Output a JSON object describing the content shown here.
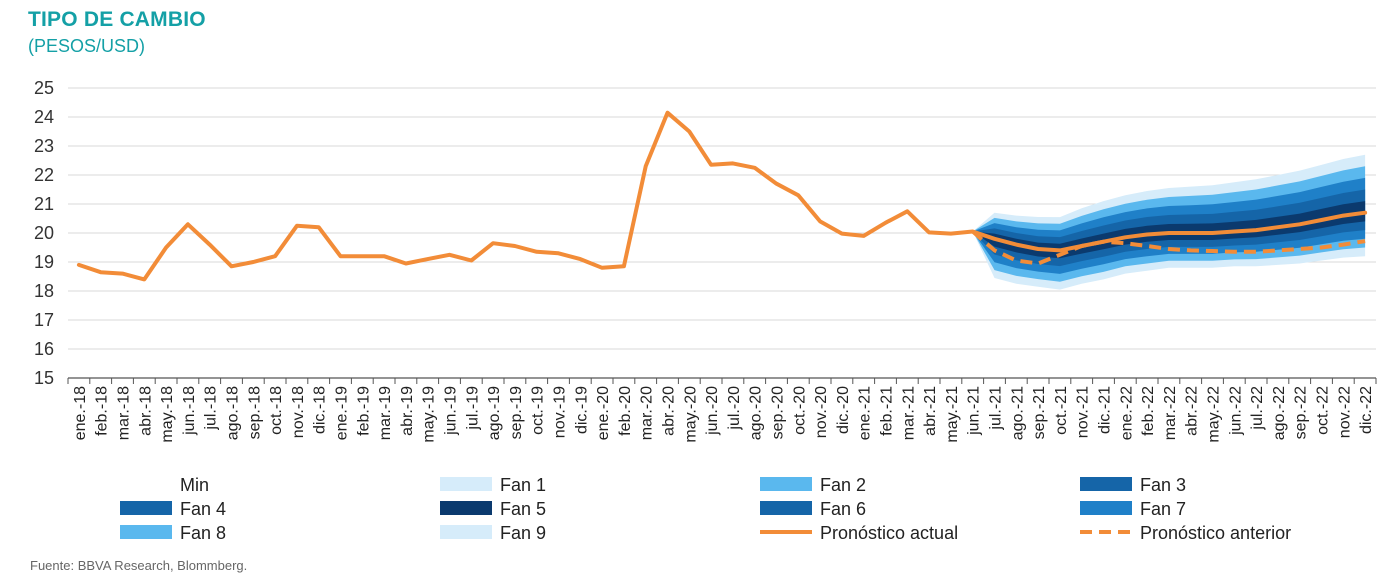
{
  "chart_data": {
    "type": "line",
    "title": "TIPO DE CAMBIO",
    "subtitle": "(PESOS/USD)",
    "ylim": [
      15,
      25
    ],
    "yticks": [
      15,
      16,
      17,
      18,
      19,
      20,
      21,
      22,
      23,
      24,
      25
    ],
    "grid": true,
    "legend_position": "bottom",
    "categories": [
      "ene.-18",
      "feb.-18",
      "mar.-18",
      "abr.-18",
      "may.-18",
      "jun.-18",
      "jul.-18",
      "ago.-18",
      "sep.-18",
      "oct.-18",
      "nov.-18",
      "dic.-18",
      "ene.-19",
      "feb.-19",
      "mar.-19",
      "abr.-19",
      "may.-19",
      "jun.-19",
      "jul.-19",
      "ago.-19",
      "sep.-19",
      "oct.-19",
      "nov.-19",
      "dic.-19",
      "ene.-20",
      "feb.-20",
      "mar.-20",
      "abr.-20",
      "may.-20",
      "jun.-20",
      "jul.-20",
      "ago.-20",
      "sep.-20",
      "oct.-20",
      "nov.-20",
      "dic.-20",
      "ene.-21",
      "feb.-21",
      "mar.-21",
      "abr.-21",
      "may.-21",
      "jun.-21",
      "jul.-21",
      "ago.-21",
      "sep.-21",
      "oct.-21",
      "nov.-21",
      "dic.-21",
      "ene.-22",
      "feb.-22",
      "mar.-22",
      "abr.-22",
      "may.-22",
      "jun.-22",
      "jul.-22",
      "ago.-22",
      "sep.-22",
      "oct.-22",
      "nov.-22",
      "dic.-22"
    ],
    "series": [
      {
        "name": "Pronóstico actual",
        "color": "#f28c38",
        "style": "solid",
        "values": [
          18.9,
          18.65,
          18.6,
          18.4,
          19.5,
          20.3,
          19.6,
          18.85,
          19.0,
          19.2,
          20.25,
          20.2,
          19.2,
          19.2,
          19.2,
          18.95,
          19.1,
          19.25,
          19.05,
          19.65,
          19.55,
          19.35,
          19.3,
          19.1,
          18.8,
          18.85,
          22.3,
          24.15,
          23.5,
          22.35,
          22.4,
          22.25,
          21.7,
          21.3,
          20.4,
          19.98,
          19.9,
          20.35,
          20.75,
          20.02,
          19.98,
          20.05,
          19.8,
          19.6,
          19.45,
          19.4,
          19.55,
          19.7,
          19.85,
          19.95,
          20.0,
          20.0,
          20.0,
          20.05,
          20.1,
          20.2,
          20.3,
          20.45,
          20.6,
          20.7
        ]
      },
      {
        "name": "Pronóstico anterior",
        "color": "#f28c38",
        "style": "dashed",
        "values": [
          null,
          null,
          null,
          null,
          null,
          null,
          null,
          null,
          null,
          null,
          null,
          null,
          null,
          null,
          null,
          null,
          null,
          null,
          null,
          null,
          null,
          null,
          null,
          null,
          null,
          null,
          null,
          null,
          null,
          null,
          null,
          null,
          null,
          null,
          null,
          null,
          null,
          null,
          null,
          null,
          null,
          20.05,
          19.4,
          19.05,
          18.95,
          19.25,
          19.55,
          19.7,
          19.65,
          19.55,
          19.45,
          19.4,
          19.38,
          19.35,
          19.35,
          19.4,
          19.45,
          19.5,
          19.6,
          19.72
        ]
      }
    ],
    "fan": {
      "start_category": "jun.-21",
      "center_values": [
        20.05,
        19.8,
        19.6,
        19.45,
        19.4,
        19.55,
        19.7,
        19.85,
        19.95,
        20.0,
        20.0,
        20.0,
        20.05,
        20.1,
        20.2,
        20.3,
        20.45,
        20.6,
        20.7
      ],
      "upper_offsets": [
        0,
        0.9,
        1.0,
        1.1,
        1.15,
        1.3,
        1.4,
        1.45,
        1.5,
        1.55,
        1.6,
        1.65,
        1.7,
        1.75,
        1.8,
        1.85,
        1.9,
        1.95,
        2.0
      ],
      "lower_offsets": [
        0,
        1.35,
        1.35,
        1.3,
        1.35,
        1.3,
        1.3,
        1.25,
        1.25,
        1.2,
        1.2,
        1.2,
        1.2,
        1.25,
        1.3,
        1.35,
        1.4,
        1.45,
        1.5
      ]
    },
    "legend": [
      {
        "label": "Min",
        "kind": "none",
        "color": ""
      },
      {
        "label": "Fan 1",
        "kind": "rect",
        "color": "#d6ecfa"
      },
      {
        "label": "Fan 2",
        "kind": "rect",
        "color": "#5ab8ee"
      },
      {
        "label": "Fan 3",
        "kind": "rect",
        "color": "#1565a8"
      },
      {
        "label": "Fan 4",
        "kind": "rect",
        "color": "#1565a8"
      },
      {
        "label": "Fan 5",
        "kind": "rect",
        "color": "#0b3a6e"
      },
      {
        "label": "Fan 6",
        "kind": "rect",
        "color": "#1565a8"
      },
      {
        "label": "Fan 7",
        "kind": "rect",
        "color": "#1f80c8"
      },
      {
        "label": "Fan 8",
        "kind": "rect",
        "color": "#5ab8ee"
      },
      {
        "label": "Fan 9",
        "kind": "rect",
        "color": "#d6ecfa"
      },
      {
        "label": "Pronóstico actual",
        "kind": "line",
        "color": "#f28c38"
      },
      {
        "label": "Pronóstico anterior",
        "kind": "dash",
        "color": "#f28c38"
      }
    ],
    "source": "Fuente: BBVA Research, Blommberg."
  }
}
